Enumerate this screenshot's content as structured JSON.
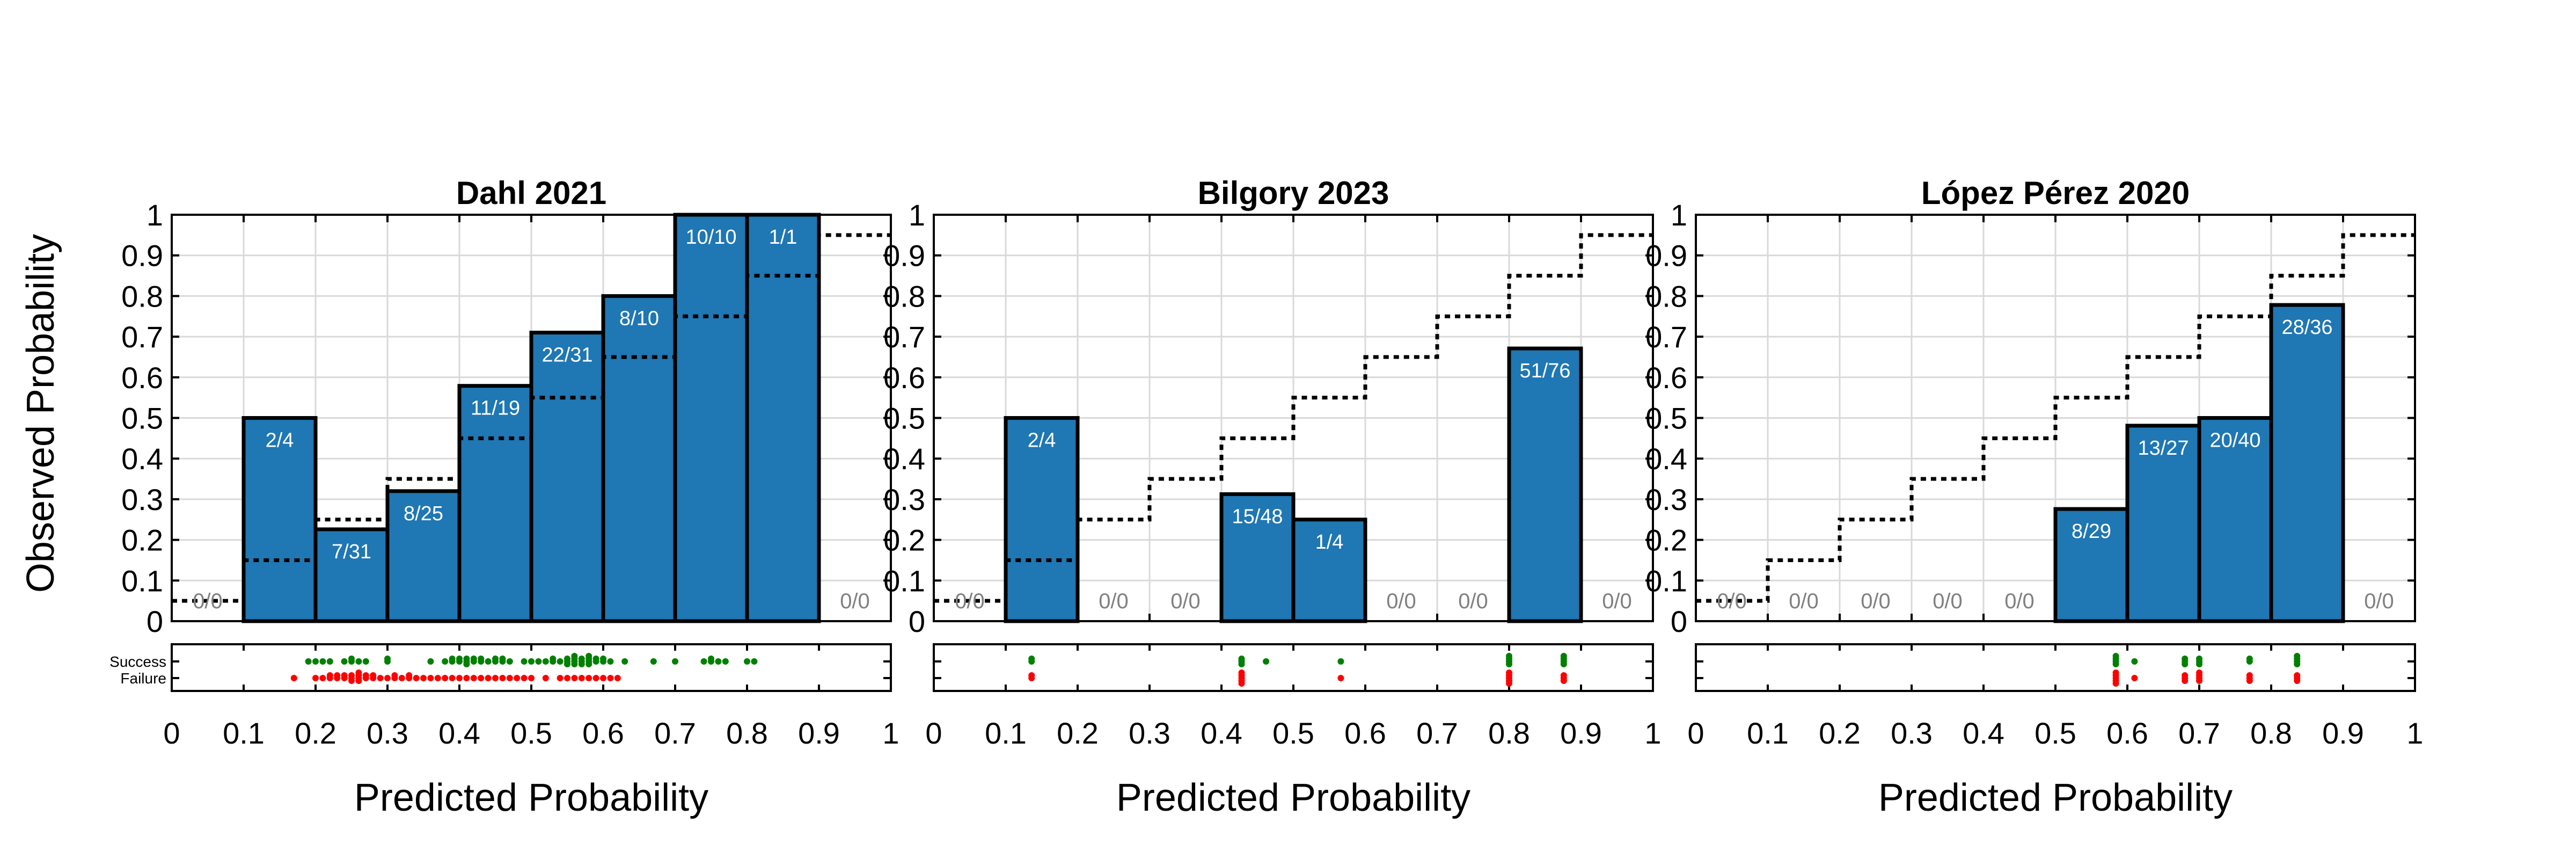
{
  "figure": {
    "ylabel": "Observed Probability",
    "xlabel": "Predicted Probability",
    "xticks": [
      "0",
      "0.1",
      "0.2",
      "0.3",
      "0.4",
      "0.5",
      "0.6",
      "0.7",
      "0.8",
      "0.9",
      "1"
    ],
    "yticks": [
      "0",
      "0.1",
      "0.2",
      "0.3",
      "0.4",
      "0.5",
      "0.6",
      "0.7",
      "0.8",
      "0.9",
      "1"
    ],
    "strip_labels": [
      "Success",
      "Failure"
    ],
    "colors": {
      "bar": "#1f77b4",
      "bar_edge": "#000000",
      "expected_line": "#000000",
      "empty_label": "#808080",
      "bar_label": "#ffffff",
      "success": "#008000",
      "failure": "#ff0000",
      "grid": "#d9d9d9"
    }
  },
  "chart_data": [
    {
      "type": "bar",
      "title": "Dahl 2021",
      "xlim": [
        0,
        1
      ],
      "ylim": [
        0,
        1
      ],
      "bins": [
        {
          "x0": 0.0,
          "x1": 0.1,
          "observed": 0,
          "label": "0/0",
          "expected": 0.05
        },
        {
          "x0": 0.1,
          "x1": 0.2,
          "observed": 0.5,
          "label": "2/4",
          "expected": 0.15
        },
        {
          "x0": 0.2,
          "x1": 0.3,
          "observed": 0.226,
          "label": "7/31",
          "expected": 0.25
        },
        {
          "x0": 0.3,
          "x1": 0.4,
          "observed": 0.32,
          "label": "8/25",
          "expected": 0.35
        },
        {
          "x0": 0.4,
          "x1": 0.5,
          "observed": 0.579,
          "label": "11/19",
          "expected": 0.45
        },
        {
          "x0": 0.5,
          "x1": 0.6,
          "observed": 0.71,
          "label": "22/31",
          "expected": 0.55
        },
        {
          "x0": 0.6,
          "x1": 0.7,
          "observed": 0.8,
          "label": "8/10",
          "expected": 0.65
        },
        {
          "x0": 0.7,
          "x1": 0.8,
          "observed": 1.0,
          "label": "10/10",
          "expected": 0.75
        },
        {
          "x0": 0.8,
          "x1": 0.9,
          "observed": 1.0,
          "label": "1/1",
          "expected": 0.85
        },
        {
          "x0": 0.9,
          "x1": 1.0,
          "observed": 0,
          "label": "0/0",
          "expected": 0.95
        }
      ],
      "success_x": [
        0.19,
        0.2,
        0.21,
        0.22,
        0.24,
        0.25,
        0.25,
        0.26,
        0.27,
        0.3,
        0.3,
        0.36,
        0.38,
        0.39,
        0.39,
        0.4,
        0.4,
        0.41,
        0.41,
        0.41,
        0.42,
        0.42,
        0.43,
        0.43,
        0.44,
        0.45,
        0.45,
        0.46,
        0.46,
        0.47,
        0.49,
        0.5,
        0.51,
        0.52,
        0.53,
        0.53,
        0.54,
        0.55,
        0.55,
        0.55,
        0.56,
        0.56,
        0.56,
        0.56,
        0.57,
        0.57,
        0.57,
        0.58,
        0.58,
        0.58,
        0.58,
        0.59,
        0.59,
        0.6,
        0.6,
        0.61,
        0.63,
        0.67,
        0.7,
        0.74,
        0.75,
        0.75,
        0.76,
        0.77,
        0.8,
        0.81
      ],
      "failure_x": [
        0.17,
        0.2,
        0.21,
        0.22,
        0.22,
        0.23,
        0.23,
        0.24,
        0.24,
        0.25,
        0.25,
        0.25,
        0.26,
        0.26,
        0.26,
        0.26,
        0.27,
        0.27,
        0.28,
        0.28,
        0.29,
        0.3,
        0.31,
        0.31,
        0.32,
        0.33,
        0.33,
        0.34,
        0.35,
        0.36,
        0.37,
        0.38,
        0.39,
        0.4,
        0.41,
        0.42,
        0.43,
        0.44,
        0.45,
        0.46,
        0.47,
        0.48,
        0.49,
        0.5,
        0.52,
        0.54,
        0.55,
        0.56,
        0.57,
        0.58,
        0.59,
        0.6,
        0.61,
        0.62
      ]
    },
    {
      "type": "bar",
      "title": "Bilgory 2023",
      "xlim": [
        0,
        1
      ],
      "ylim": [
        0,
        1
      ],
      "bins": [
        {
          "x0": 0.0,
          "x1": 0.1,
          "observed": 0,
          "label": "0/0",
          "expected": 0.05
        },
        {
          "x0": 0.1,
          "x1": 0.2,
          "observed": 0.5,
          "label": "2/4",
          "expected": 0.15
        },
        {
          "x0": 0.2,
          "x1": 0.3,
          "observed": 0,
          "label": "0/0",
          "expected": 0.25
        },
        {
          "x0": 0.3,
          "x1": 0.4,
          "observed": 0,
          "label": "0/0",
          "expected": 0.35
        },
        {
          "x0": 0.4,
          "x1": 0.5,
          "observed": 0.3125,
          "label": "15/48",
          "expected": 0.45
        },
        {
          "x0": 0.5,
          "x1": 0.6,
          "observed": 0.25,
          "label": "1/4",
          "expected": 0.55
        },
        {
          "x0": 0.6,
          "x1": 0.7,
          "observed": 0,
          "label": "0/0",
          "expected": 0.65
        },
        {
          "x0": 0.7,
          "x1": 0.8,
          "observed": 0,
          "label": "0/0",
          "expected": 0.75
        },
        {
          "x0": 0.8,
          "x1": 0.9,
          "observed": 0.671,
          "label": "51/76",
          "expected": 0.85
        },
        {
          "x0": 0.9,
          "x1": 1.0,
          "observed": 0,
          "label": "0/0",
          "expected": 0.95
        }
      ],
      "success_x": [
        0.136,
        0.136,
        0.428,
        0.428,
        0.428,
        0.462,
        0.566,
        0.8,
        0.8,
        0.8,
        0.8,
        0.876,
        0.876,
        0.876,
        0.876
      ],
      "failure_x": [
        0.136,
        0.136,
        0.428,
        0.428,
        0.428,
        0.428,
        0.428,
        0.566,
        0.8,
        0.8,
        0.8,
        0.8,
        0.8,
        0.876,
        0.876,
        0.876
      ]
    },
    {
      "type": "bar",
      "title": "López Pérez 2020",
      "xlim": [
        0,
        1
      ],
      "ylim": [
        0,
        1
      ],
      "bins": [
        {
          "x0": 0.0,
          "x1": 0.1,
          "observed": 0,
          "label": "0/0",
          "expected": 0.05
        },
        {
          "x0": 0.1,
          "x1": 0.2,
          "observed": 0,
          "label": "0/0",
          "expected": 0.15
        },
        {
          "x0": 0.2,
          "x1": 0.3,
          "observed": 0,
          "label": "0/0",
          "expected": 0.25
        },
        {
          "x0": 0.3,
          "x1": 0.4,
          "observed": 0,
          "label": "0/0",
          "expected": 0.35
        },
        {
          "x0": 0.4,
          "x1": 0.5,
          "observed": 0,
          "label": "0/0",
          "expected": 0.45
        },
        {
          "x0": 0.5,
          "x1": 0.6,
          "observed": 0.276,
          "label": "8/29",
          "expected": 0.55
        },
        {
          "x0": 0.6,
          "x1": 0.7,
          "observed": 0.481,
          "label": "13/27",
          "expected": 0.65
        },
        {
          "x0": 0.7,
          "x1": 0.8,
          "observed": 0.5,
          "label": "20/40",
          "expected": 0.75
        },
        {
          "x0": 0.8,
          "x1": 0.9,
          "observed": 0.778,
          "label": "28/36",
          "expected": 0.85
        },
        {
          "x0": 0.9,
          "x1": 1.0,
          "observed": 0,
          "label": "0/0",
          "expected": 0.95
        }
      ],
      "success_x": [
        0.584,
        0.584,
        0.584,
        0.584,
        0.61,
        0.68,
        0.68,
        0.68,
        0.7,
        0.7,
        0.7,
        0.77,
        0.77,
        0.836,
        0.836,
        0.836,
        0.836
      ],
      "failure_x": [
        0.584,
        0.584,
        0.584,
        0.584,
        0.584,
        0.61,
        0.68,
        0.68,
        0.68,
        0.7,
        0.7,
        0.7,
        0.7,
        0.77,
        0.77,
        0.77,
        0.836,
        0.836,
        0.836
      ]
    }
  ]
}
